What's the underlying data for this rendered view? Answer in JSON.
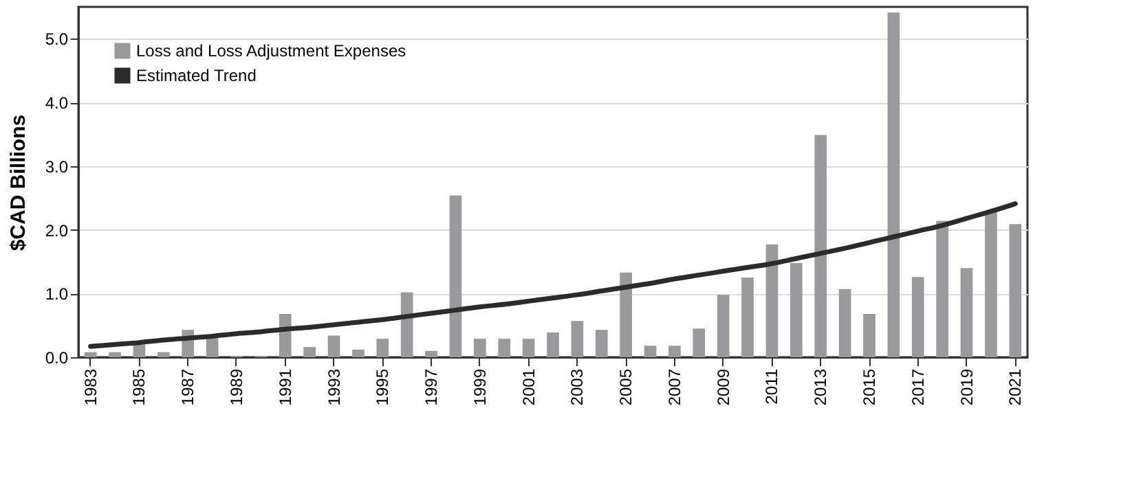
{
  "chart_data": {
    "type": "bar",
    "ylabel": "$CAD Billions",
    "categories": [
      "1983",
      null,
      "1985",
      null,
      "1987",
      null,
      "1989",
      null,
      "1991",
      null,
      "1993",
      null,
      "1995",
      null,
      "1997",
      null,
      "1999",
      null,
      "2001",
      null,
      "2003",
      null,
      "2005",
      null,
      "2007",
      null,
      "2009",
      null,
      "2011",
      null,
      "2013",
      null,
      "2015",
      null,
      "2017",
      null,
      "2019",
      null,
      "2021"
    ],
    "series": [
      {
        "name": "Loss and Loss Adjustment Expenses",
        "color": "#9a9a9c",
        "values": [
          0.08,
          0.08,
          0.2,
          0.08,
          0.43,
          0.3,
          0.02,
          0.02,
          0.68,
          0.16,
          0.34,
          0.12,
          0.29,
          1.02,
          0.1,
          2.54,
          0.29,
          0.29,
          0.29,
          0.39,
          0.57,
          0.43,
          1.33,
          0.18,
          0.18,
          0.45,
          0.98,
          1.25,
          1.77,
          1.48,
          3.49,
          1.07,
          0.68,
          5.41,
          1.26,
          2.14,
          1.4,
          2.29,
          2.09
        ]
      },
      {
        "name": "Estimated Trend",
        "type": "line",
        "color": "#2b2b2b",
        "values": [
          0.17,
          0.2,
          0.23,
          0.27,
          0.3,
          0.33,
          0.37,
          0.4,
          0.44,
          0.47,
          0.51,
          0.55,
          0.59,
          0.64,
          0.69,
          0.74,
          0.79,
          0.83,
          0.88,
          0.93,
          0.98,
          1.04,
          1.1,
          1.16,
          1.23,
          1.29,
          1.35,
          1.41,
          1.47,
          1.55,
          1.63,
          1.71,
          1.8,
          1.89,
          1.98,
          2.07,
          2.18,
          2.29,
          2.41
        ]
      }
    ],
    "ylim": [
      0,
      5.5
    ],
    "yticks": [
      {
        "value": 0,
        "label": "0.0"
      },
      {
        "value": 1,
        "label": "1.0"
      },
      {
        "value": 2,
        "label": "2.0"
      },
      {
        "value": 3,
        "label": "3.0"
      },
      {
        "value": 4,
        "label": "4.0"
      },
      {
        "value": 5,
        "label": "5.0"
      }
    ],
    "grid": "y",
    "legend": "top left"
  }
}
